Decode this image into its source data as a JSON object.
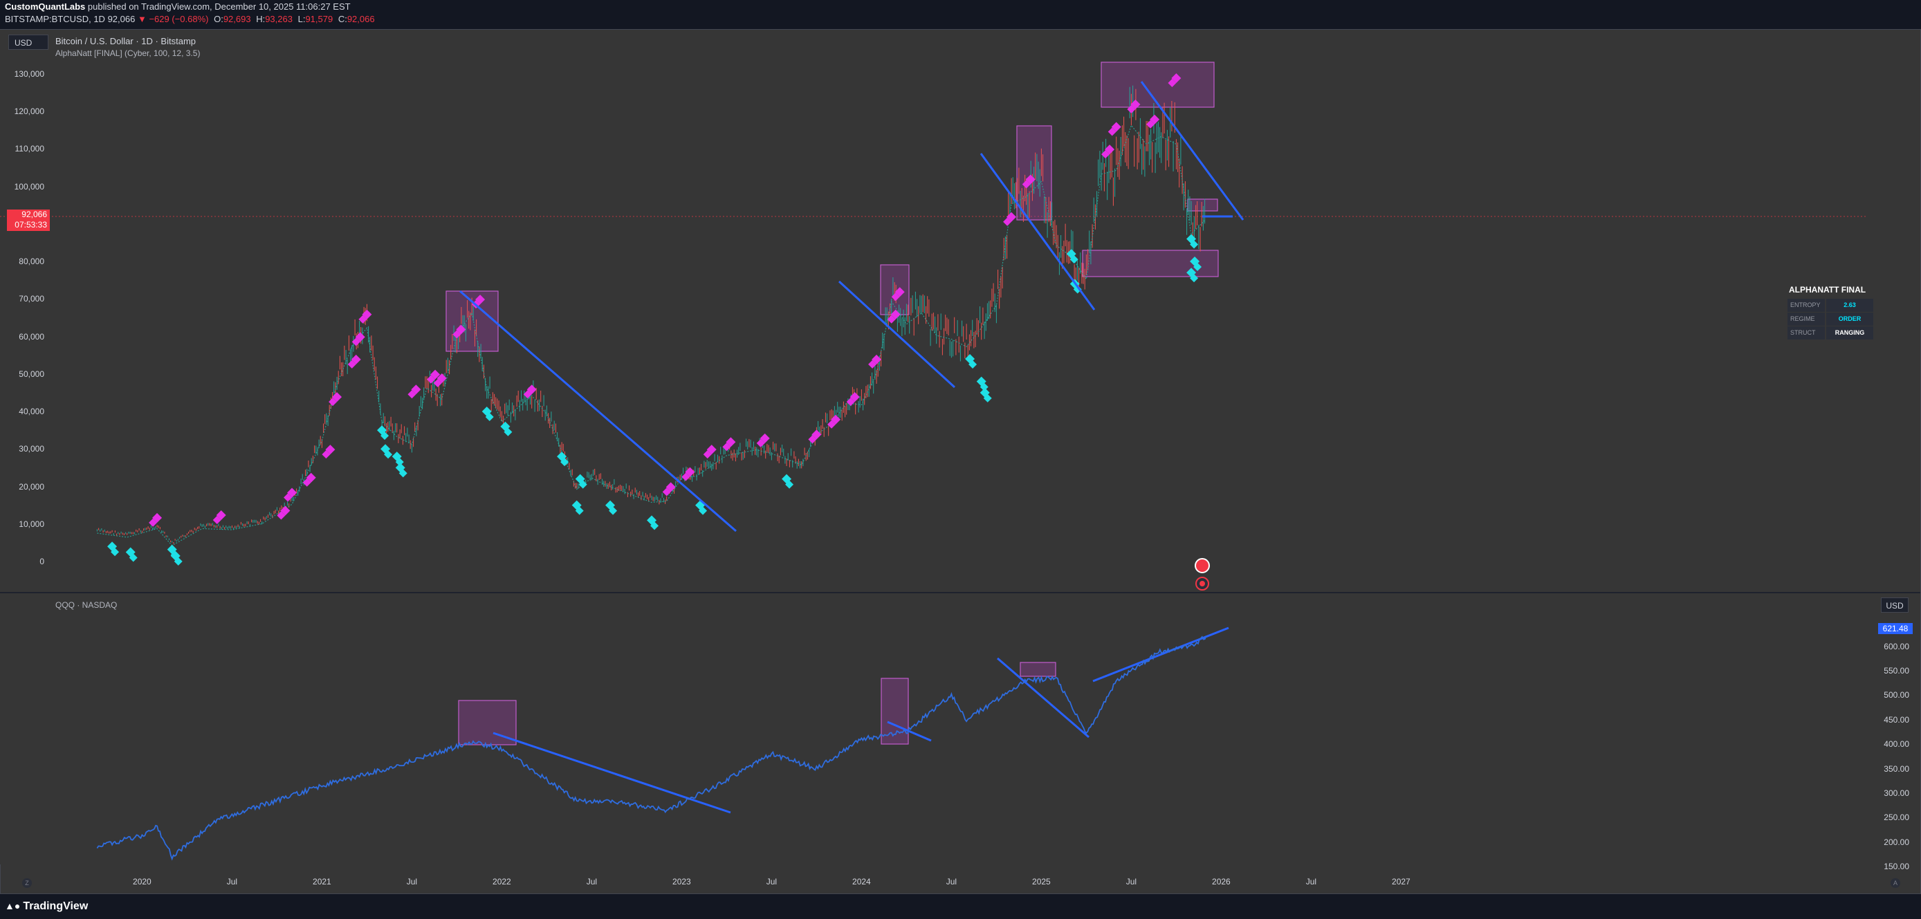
{
  "header": {
    "author": "CustomQuantLabs",
    "published_text": "published on TradingView.com, December 10, 2025 11:06:27 EST",
    "symbol_line": "BITSTAMP:BTCUSD, 1D",
    "last": "92,066",
    "change": "▼ −629 (−0.68%)",
    "o": "92,693",
    "h": "93,263",
    "l": "91,579",
    "c": "92,066"
  },
  "main_pane": {
    "currency_button": "USD",
    "symbol_title": "Bitcoin / U.S. Dollar · 1D · Bitstamp",
    "indicator": "AlphaNatt [FINAL] (Cyber, 100, 12, 3.5)",
    "price_badge_value": "92,066",
    "price_badge_timer": "07:53:33",
    "y_ticks": [
      "130,000",
      "120,000",
      "110,000",
      "100,000",
      "90,000",
      "80,000",
      "70,000",
      "60,000",
      "50,000",
      "40,000",
      "30,000",
      "20,000",
      "10,000",
      "0"
    ]
  },
  "lower_pane": {
    "symbol_title": "QQQ · NASDAQ",
    "currency_button": "USD",
    "price_badge_value": "621.48",
    "y_ticks": [
      "600.00",
      "550.00",
      "500.00",
      "450.00",
      "400.00",
      "350.00",
      "300.00",
      "250.00",
      "200.00",
      "150.00"
    ]
  },
  "x_axis": [
    "2020",
    "Jul",
    "2021",
    "Jul",
    "2022",
    "Jul",
    "2023",
    "Jul",
    "2024",
    "Jul",
    "2025",
    "Jul",
    "2026",
    "Jul",
    "2027"
  ],
  "alphanatt_panel": {
    "title": "ALPHANATT FINAL",
    "rows": [
      {
        "key": "ENTROPY",
        "value": "2.63",
        "color": "#00e5ff"
      },
      {
        "key": "REGIME",
        "value": "ORDER",
        "color": "#00e5ff"
      },
      {
        "key": "STRUCT",
        "value": "RANGING",
        "color": "#ffffff"
      }
    ]
  },
  "footer": {
    "brand": "TradingView",
    "tz_button": "Z",
    "auto_button": "A"
  },
  "colors": {
    "background": "#363636",
    "bull_marker": "#e62ee6",
    "bear_marker": "#1fe0e6",
    "trendline": "#2962ff",
    "box": "#a040a8",
    "qqq_line": "#2f6de0",
    "last_price": "#f23645"
  },
  "chart_data": [
    {
      "type": "line",
      "title": "Bitcoin / U.S. Dollar · 1D · Bitstamp",
      "ylim": [
        0,
        130000
      ],
      "series": [
        {
          "name": "BTCUSD",
          "x": [
            "2019-10",
            "2019-12",
            "2020-02",
            "2020-03",
            "2020-05",
            "2020-07",
            "2020-09",
            "2020-11",
            "2020-12",
            "2021-01",
            "2021-02",
            "2021-03",
            "2021-04",
            "2021-05",
            "2021-06",
            "2021-07",
            "2021-08",
            "2021-09",
            "2021-10",
            "2021-11",
            "2021-12",
            "2022-01",
            "2022-03",
            "2022-04",
            "2022-05",
            "2022-06",
            "2022-07",
            "2022-08",
            "2022-09",
            "2022-11",
            "2022-12",
            "2023-01",
            "2023-02",
            "2023-04",
            "2023-06",
            "2023-07",
            "2023-09",
            "2023-10",
            "2023-11",
            "2023-12",
            "2024-01",
            "2024-02",
            "2024-03",
            "2024-04",
            "2024-05",
            "2024-06",
            "2024-07",
            "2024-08",
            "2024-09",
            "2024-10",
            "2024-11",
            "2024-12",
            "2025-01",
            "2025-02",
            "2025-03",
            "2025-04",
            "2025-05",
            "2025-06",
            "2025-07",
            "2025-08",
            "2025-09",
            "2025-10",
            "2025-11",
            "2025-12"
          ],
          "values": [
            8300,
            7200,
            9500,
            5000,
            9500,
            9200,
            10800,
            16000,
            24000,
            33000,
            48000,
            58000,
            63000,
            38000,
            34000,
            32000,
            47000,
            44000,
            61000,
            67000,
            47000,
            38000,
            45000,
            40000,
            30000,
            20000,
            23000,
            21000,
            19500,
            16500,
            16800,
            23000,
            23500,
            29000,
            30500,
            29500,
            26500,
            34500,
            37500,
            43000,
            42500,
            51000,
            70000,
            64000,
            67000,
            61000,
            60000,
            58000,
            63000,
            69000,
            96000,
            98000,
            102000,
            85000,
            82000,
            76000,
            104000,
            105000,
            117000,
            112000,
            114000,
            112000,
            88000,
            92066
          ]
        }
      ],
      "annotations": [
        "AlphaNatt bullish markers (magenta diamonds)",
        "AlphaNatt bearish markers (cyan diamonds)",
        "descending trendlines",
        "purple range boxes"
      ]
    },
    {
      "type": "line",
      "title": "QQQ · NASDAQ",
      "ylim": [
        150,
        620
      ],
      "series": [
        {
          "name": "QQQ",
          "x": [
            "2019-10",
            "2020-01",
            "2020-02",
            "2020-03",
            "2020-06",
            "2020-09",
            "2021-01",
            "2021-06",
            "2021-11",
            "2022-01",
            "2022-06",
            "2022-09",
            "2022-12",
            "2023-03",
            "2023-07",
            "2023-10",
            "2024-01",
            "2024-04",
            "2024-07",
            "2024-08",
            "2024-12",
            "2025-02",
            "2025-04",
            "2025-06",
            "2025-09",
            "2025-11",
            "2025-12"
          ],
          "values": [
            192,
            212,
            232,
            170,
            245,
            275,
            315,
            355,
            405,
            390,
            285,
            280,
            265,
            310,
            380,
            350,
            410,
            425,
            500,
            450,
            530,
            535,
            420,
            530,
            590,
            600,
            621.48
          ]
        }
      ]
    }
  ]
}
